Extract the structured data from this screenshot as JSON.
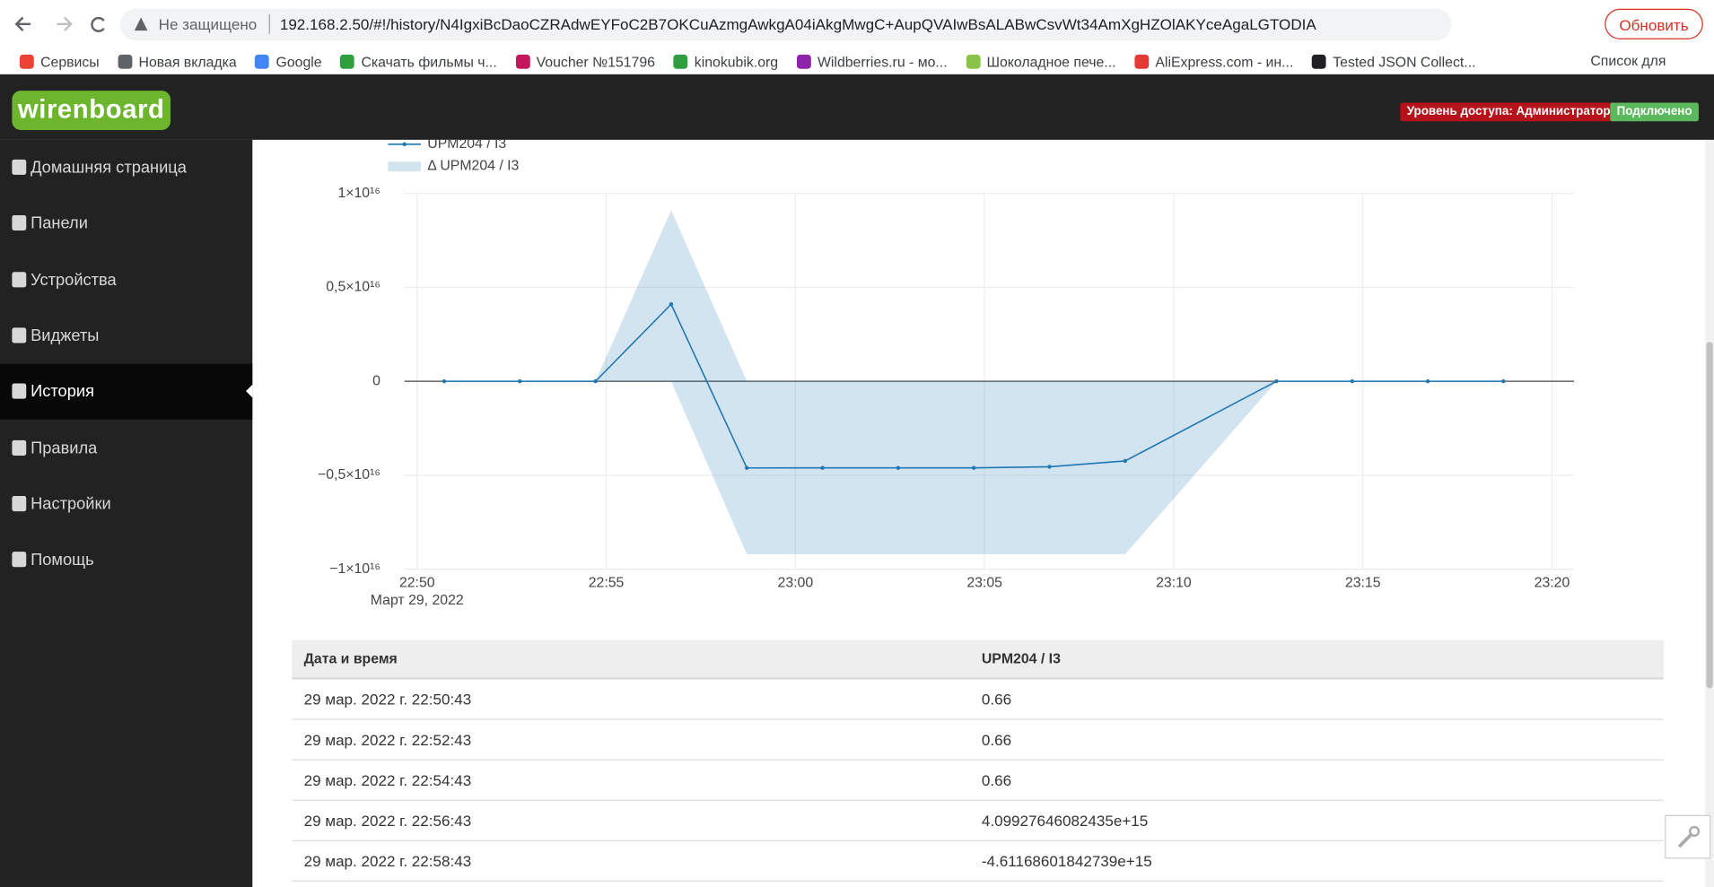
{
  "browser": {
    "security": "Не защищено",
    "url": "192.168.2.50/#!/history/N4IgxiBcDaoCZRAdwEYFoC2B7OKCuAzmgAwkgA04iAkgMwgC+AupQVAIwBsALABwCsvWt34AmXgHZOlAKYceAgaLGTODIA",
    "update_button": "Обновить",
    "bookmarks": [
      "Сервисы",
      "Новая вкладка",
      "Google",
      "Скачать фильмы ч...",
      "Voucher №151796",
      "kinokubik.org",
      "Wildberries.ru - мо...",
      "Шоколадное пече...",
      "AliExpress.com - ин...",
      "Tested JSON Collect..."
    ],
    "reading_list": "Список для чтения"
  },
  "header": {
    "logo": "wirenboard",
    "access": "Уровень доступа: Администратор",
    "status": "Подключено"
  },
  "sidebar": {
    "items": [
      "Домашняя страница",
      "Панели",
      "Устройства",
      "Виджеты",
      "История",
      "Правила",
      "Настройки",
      "Помощь"
    ],
    "active": 4
  },
  "chart_data": {
    "type": "line",
    "x": [
      "22:50:43",
      "22:52:43",
      "22:54:43",
      "22:56:43",
      "22:58:43",
      "23:00:43",
      "23:02:43",
      "23:04:43",
      "23:06:43",
      "23:08:43",
      "23:12:43",
      "23:14:43",
      "23:16:43",
      "23:18:43"
    ],
    "x_date_label": "Март 29, 2022",
    "series": [
      {
        "name": "UPM204 / I3",
        "color": "#1f77b4",
        "values": [
          0.66,
          0.66,
          0.66,
          4099276460824350.0,
          -4611686018427390.0,
          -4610000000000000.0,
          -4610000000000000.0,
          -4610000000000000.0,
          -4550000000000000.0,
          -4240000000000000.0,
          0,
          0,
          0,
          0
        ]
      },
      {
        "name": "Δ UPM204 / I3",
        "color": "#1f77b4",
        "type": "band",
        "upper": [
          0.66,
          0.66,
          0.66,
          9100000000000000.0,
          0,
          0,
          0,
          0,
          0,
          0,
          0,
          0,
          0,
          0
        ],
        "lower": [
          0.66,
          0.66,
          0.66,
          0,
          -9200000000000000.0,
          -9200000000000000.0,
          -9200000000000000.0,
          -9200000000000000.0,
          -9200000000000000.0,
          -9200000000000000.0,
          0,
          0,
          0,
          0
        ]
      }
    ],
    "xlim": [
      "22:49:40",
      "23:20:35"
    ],
    "xticks": [
      "22:50",
      "22:55",
      "23:00",
      "23:05",
      "23:10",
      "23:15",
      "23:20"
    ],
    "ylim": [
      -1e+16,
      1e+16
    ],
    "yticks": [
      {
        "value": 1e+16,
        "label": "1×10¹⁶"
      },
      {
        "value": 5000000000000000.0,
        "label": "0,5×10¹⁶"
      },
      0,
      {
        "value": -5000000000000000.0,
        "label": "−0,5×10¹⁶"
      },
      {
        "value": -1e+16,
        "label": "−1×10¹⁶"
      }
    ],
    "grid": true
  },
  "table": {
    "columns": [
      "Дата и время",
      "UPM204 / I3"
    ],
    "rows": [
      [
        "29 мар. 2022 г. 22:50:43",
        "0.66"
      ],
      [
        "29 мар. 2022 г. 22:52:43",
        "0.66"
      ],
      [
        "29 мар. 2022 г. 22:54:43",
        "0.66"
      ],
      [
        "29 мар. 2022 г. 22:56:43",
        "4.09927646082435e+15"
      ],
      [
        "29 мар. 2022 г. 22:58:43",
        "-4.61168601842739e+15"
      ]
    ]
  }
}
